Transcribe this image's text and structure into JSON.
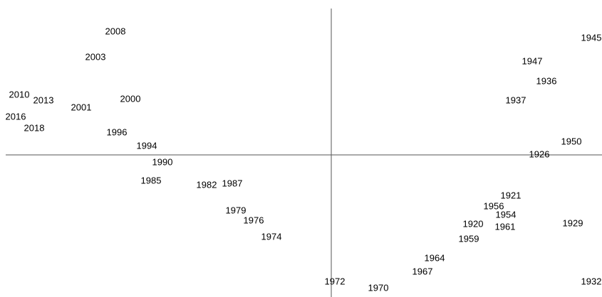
{
  "chart_data": {
    "type": "scatter",
    "labels": [
      "2008",
      "2003",
      "2010",
      "2013",
      "2016",
      "2018",
      "2001",
      "2000",
      "1996",
      "1994",
      "1990",
      "1985",
      "1982",
      "1987",
      "1979",
      "1976",
      "1974",
      "1972",
      "1970",
      "1967",
      "1964",
      "1959",
      "1920",
      "1961",
      "1954",
      "1956",
      "1921",
      "1929",
      "1932",
      "1926",
      "1950",
      "1937",
      "1936",
      "1947",
      "1945"
    ],
    "x": [
      -3.03,
      -3.31,
      -4.38,
      -4.04,
      -4.43,
      -4.17,
      -3.51,
      -2.82,
      -3.01,
      -2.59,
      -2.37,
      -2.53,
      -1.75,
      -1.39,
      -1.34,
      -1.09,
      -0.84,
      0.05,
      0.66,
      1.28,
      1.45,
      1.93,
      1.99,
      2.44,
      2.45,
      2.28,
      2.52,
      3.39,
      3.65,
      2.92,
      3.37,
      2.59,
      3.02,
      2.82,
      3.65
    ],
    "y": [
      1.73,
      1.37,
      0.84,
      0.76,
      0.53,
      0.37,
      0.66,
      0.78,
      0.31,
      0.12,
      -0.11,
      -0.37,
      -0.43,
      -0.41,
      -0.79,
      -0.93,
      -1.16,
      -1.79,
      -1.88,
      -1.65,
      -1.46,
      -1.19,
      -0.98,
      -1.02,
      -0.85,
      -0.73,
      -0.58,
      -0.97,
      -1.79,
      0,
      0.18,
      0.76,
      1.03,
      1.31,
      1.64
    ],
    "xlim": [
      -4.65,
      3.8
    ],
    "ylim": [
      -2.0,
      2.18
    ]
  }
}
